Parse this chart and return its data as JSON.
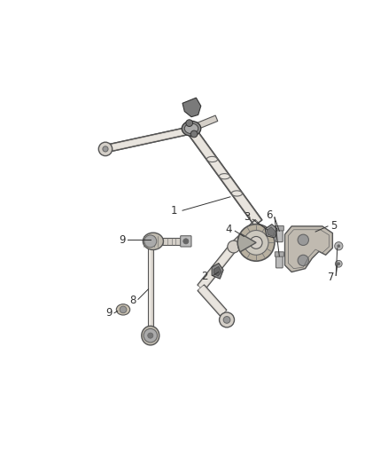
{
  "background_color": "#ffffff",
  "fig_width": 4.38,
  "fig_height": 5.33,
  "dpi": 100,
  "label_fontsize": 8.5,
  "label_color": "#333333",
  "bar_color": "#d4cfc8",
  "bar_edge": "#555555",
  "dark_color": "#444444",
  "light_color": "#e8e4de",
  "gray_mid": "#999999",
  "gray_dark": "#666666"
}
